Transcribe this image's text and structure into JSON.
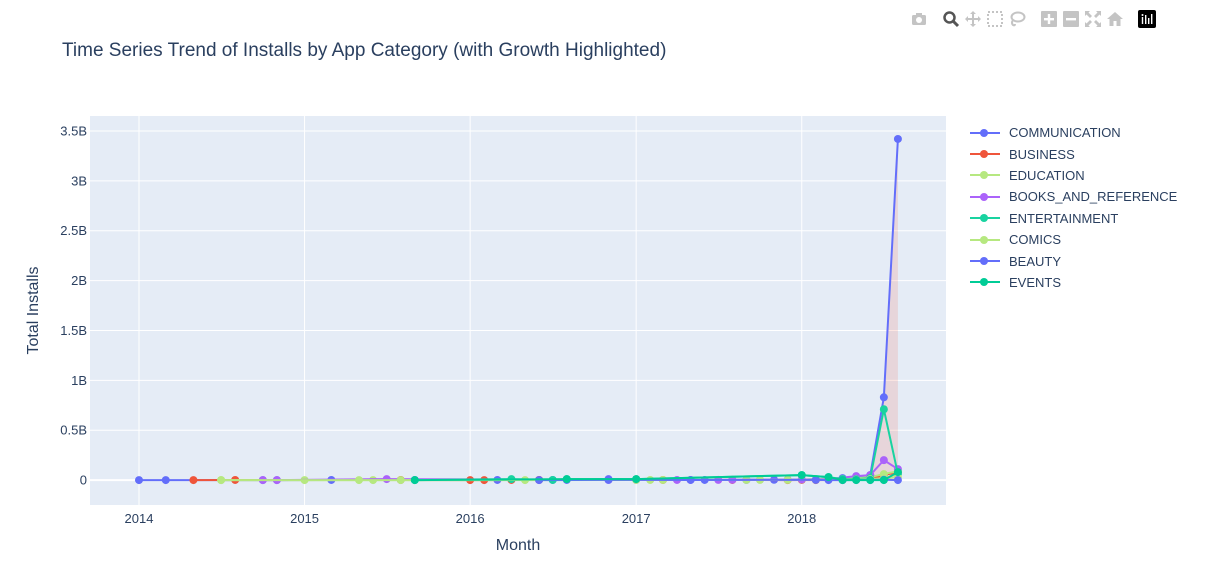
{
  "title": "Time Series Trend of Installs by App Category (with Growth Highlighted)",
  "modebar": [
    {
      "name": "camera-icon"
    },
    {
      "name": "zoom-icon"
    },
    {
      "name": "pan-icon"
    },
    {
      "name": "box-select-icon"
    },
    {
      "name": "lasso-select-icon"
    },
    {
      "name": "zoom-in-icon"
    },
    {
      "name": "zoom-out-icon"
    },
    {
      "name": "autoscale-icon"
    },
    {
      "name": "reset-axes-icon"
    },
    {
      "name": "plotly-logo-icon"
    }
  ],
  "chart_data": {
    "type": "line",
    "title": "Time Series Trend of Installs by App Category (with Growth Highlighted)",
    "xlabel": "Month",
    "ylabel": "Total Installs",
    "x_ticks": [
      {
        "value": "2014-01-01",
        "label": "2014"
      },
      {
        "value": "2015-01-01",
        "label": "2015"
      },
      {
        "value": "2016-01-01",
        "label": "2016"
      },
      {
        "value": "2017-01-01",
        "label": "2017"
      },
      {
        "value": "2018-01-01",
        "label": "2018"
      }
    ],
    "y_ticks": [
      {
        "value": 0,
        "label": "0"
      },
      {
        "value": 0.5,
        "label": "0.5B"
      },
      {
        "value": 1,
        "label": "1B"
      },
      {
        "value": 1.5,
        "label": "1.5B"
      },
      {
        "value": 2,
        "label": "2B"
      },
      {
        "value": 2.5,
        "label": "2.5B"
      },
      {
        "value": 3,
        "label": "3B"
      },
      {
        "value": 3.5,
        "label": "3.5B"
      }
    ],
    "xlim": [
      "2013-09-15",
      "2018-11-15"
    ],
    "ylim": [
      -0.25,
      3.65
    ],
    "y_unit": "billions",
    "grid": true,
    "legend_position": "right",
    "background": "#e5ecf6",
    "series": [
      {
        "name": "COMMUNICATION",
        "color": "#636efa",
        "fill": false,
        "x": [
          "2014-01-01",
          "2014-03-01",
          "2014-10-01",
          "2014-11-01",
          "2015-03-01",
          "2015-09-01",
          "2016-03-01",
          "2016-06-01",
          "2016-07-01",
          "2016-08-01",
          "2016-11-01",
          "2017-06-01",
          "2017-09-01",
          "2017-11-01",
          "2018-01-01",
          "2018-03-01",
          "2018-04-01",
          "2018-05-01",
          "2018-06-01",
          "2018-07-01",
          "2018-08-01"
        ],
        "y": [
          0,
          0,
          0,
          0,
          0.001,
          0.001,
          0.001,
          0.001,
          0.001,
          0.001,
          0.01,
          0.001,
          0.002,
          0.003,
          0.005,
          0.01,
          0.02,
          0.03,
          0.05,
          0.83,
          3.42
        ]
      },
      {
        "name": "BUSINESS",
        "color": "#ef553b",
        "fill": true,
        "x": [
          "2014-05-01",
          "2014-08-01",
          "2015-08-01",
          "2016-01-01",
          "2016-02-01",
          "2016-04-01",
          "2016-06-01",
          "2017-03-01",
          "2017-08-01",
          "2017-12-01",
          "2018-01-01",
          "2018-02-01",
          "2018-04-01",
          "2018-05-01",
          "2018-06-01",
          "2018-07-01",
          "2018-08-01"
        ],
        "y": [
          0,
          0.001,
          0.001,
          0,
          0,
          0.001,
          0.001,
          0.001,
          0.001,
          0,
          0.001,
          0,
          0.002,
          0.005,
          0.01,
          0.05,
          0.08
        ]
      },
      {
        "name": "EDUCATION",
        "color": "#b6e880",
        "fill": false,
        "x": [
          "2014-07-01",
          "2015-01-01",
          "2015-06-01",
          "2016-05-01",
          "2017-02-01",
          "2017-09-01",
          "2018-01-01",
          "2018-02-01",
          "2018-04-01",
          "2018-05-01",
          "2018-06-01",
          "2018-07-01",
          "2018-08-01"
        ],
        "y": [
          0,
          0,
          0,
          0,
          0.001,
          0.002,
          0.005,
          0.01,
          0.01,
          0.02,
          0.03,
          0.06,
          0.09
        ]
      },
      {
        "name": "BOOKS_AND_REFERENCE",
        "color": "#ab63fa",
        "fill": false,
        "x": [
          "2014-10-01",
          "2014-11-01",
          "2015-07-01",
          "2016-11-01",
          "2017-01-01",
          "2017-04-01",
          "2017-05-01",
          "2017-07-01",
          "2017-08-01",
          "2017-10-01",
          "2017-12-01",
          "2018-01-01",
          "2018-03-01",
          "2018-05-01",
          "2018-06-01",
          "2018-07-01",
          "2018-08-01"
        ],
        "y": [
          0,
          0,
          0.01,
          0.002,
          0.002,
          0.001,
          0.001,
          0.002,
          0.003,
          0.004,
          0.005,
          0.006,
          0.01,
          0.04,
          0.05,
          0.2,
          0.11
        ]
      },
      {
        "name": "ENTERTAINMENT",
        "color": "#19d3a0",
        "fill": false,
        "x": [
          "2015-09-01",
          "2016-04-01",
          "2016-07-01",
          "2016-08-01",
          "2017-01-01",
          "2018-01-01",
          "2018-03-01",
          "2018-04-01",
          "2018-05-01",
          "2018-06-01",
          "2018-07-01",
          "2018-08-01"
        ],
        "y": [
          0,
          0.01,
          0.001,
          0.01,
          0.01,
          0.05,
          0.03,
          0.01,
          0.01,
          0.02,
          0.71,
          0.06
        ]
      },
      {
        "name": "COMICS",
        "color": "#b6e880",
        "fill": false,
        "x": [
          "2014-07-01",
          "2015-05-01",
          "2015-08-01",
          "2017-01-01",
          "2017-03-01",
          "2017-10-01",
          "2017-12-01",
          "2018-02-01",
          "2018-05-01",
          "2018-06-01",
          "2018-07-01",
          "2018-08-01"
        ],
        "y": [
          0,
          0,
          0,
          0.001,
          0.001,
          0.002,
          0.002,
          0.003,
          0.005,
          0.01,
          0.02,
          0.03
        ]
      },
      {
        "name": "BEAUTY",
        "color": "#636efa",
        "fill": false,
        "x": [
          "2016-06-01",
          "2016-11-01",
          "2017-05-01",
          "2018-02-01",
          "2018-03-01",
          "2018-04-01",
          "2018-05-01",
          "2018-06-01",
          "2018-07-01",
          "2018-08-01"
        ],
        "y": [
          0,
          0.002,
          0.001,
          0.002,
          0,
          0,
          0.001,
          0.002,
          0.003,
          0
        ]
      },
      {
        "name": "EVENTS",
        "color": "#00cc96",
        "fill": false,
        "x": [
          "2015-09-01",
          "2016-08-01",
          "2017-01-01",
          "2018-01-01",
          "2018-03-01",
          "2018-04-01",
          "2018-05-01",
          "2018-06-01",
          "2018-07-01",
          "2018-08-01"
        ],
        "y": [
          0,
          0.01,
          0.01,
          0.05,
          0.03,
          0,
          0,
          0,
          0,
          0.08
        ]
      }
    ]
  }
}
